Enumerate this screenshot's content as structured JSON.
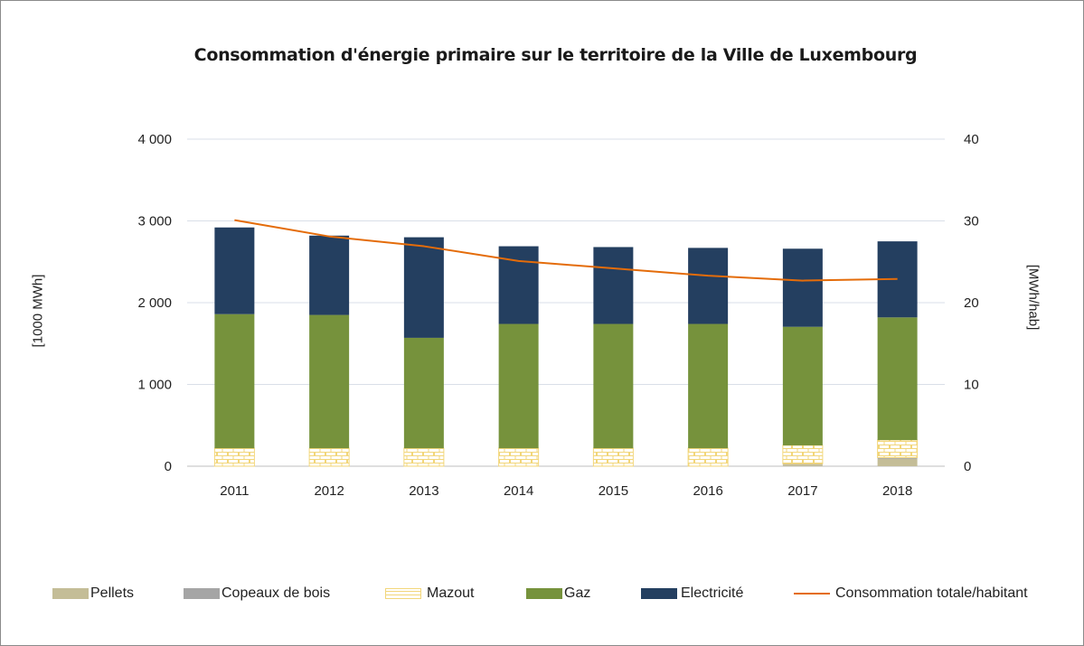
{
  "chart_data": {
    "type": "bar",
    "stacked": true,
    "title": "Consommation d'énergie primaire sur le territoire de la Ville de Luxembourg",
    "ylabel": "[1000 MWh]",
    "y2label": "[MWh/hab]",
    "ylim": [
      0,
      4000
    ],
    "y2lim": [
      0,
      40
    ],
    "yticks": [
      "0",
      "1 000",
      "2 000",
      "3 000",
      "4 000"
    ],
    "y2ticks": [
      "0",
      "10",
      "20",
      "30",
      "40"
    ],
    "yticks_values": [
      0,
      1000,
      2000,
      3000,
      4000
    ],
    "y2ticks_values": [
      0,
      10,
      20,
      30,
      40
    ],
    "grid": true,
    "legend_position": "bottom",
    "categories": [
      "2011",
      "2012",
      "2013",
      "2014",
      "2015",
      "2016",
      "2017",
      "2018"
    ],
    "series": [
      {
        "name": "Pellets",
        "kind": "bar",
        "color": "#c4bd97",
        "values": [
          0,
          0,
          0,
          0,
          0,
          0,
          20,
          90
        ]
      },
      {
        "name": "Copeaux de bois",
        "kind": "bar",
        "color": "#a5a5a5",
        "values": [
          0,
          0,
          0,
          0,
          0,
          0,
          10,
          15
        ]
      },
      {
        "name": "Mazout",
        "kind": "bar",
        "color": "#fff2cc",
        "pattern": "brick",
        "values": [
          220,
          220,
          220,
          220,
          220,
          220,
          225,
          215
        ]
      },
      {
        "name": "Gaz",
        "kind": "bar",
        "color": "#76923c",
        "values": [
          1640,
          1630,
          1350,
          1520,
          1520,
          1520,
          1450,
          1500
        ]
      },
      {
        "name": "Electricité",
        "kind": "bar",
        "color": "#243f60",
        "values": [
          1060,
          970,
          1230,
          950,
          940,
          930,
          955,
          930
        ]
      },
      {
        "name": "Consommation totale/habitant",
        "kind": "line",
        "axis": "y2",
        "color": "#e46c0a",
        "values": [
          30.1,
          28.1,
          26.9,
          25.1,
          24.2,
          23.3,
          22.7,
          22.9
        ]
      }
    ]
  }
}
